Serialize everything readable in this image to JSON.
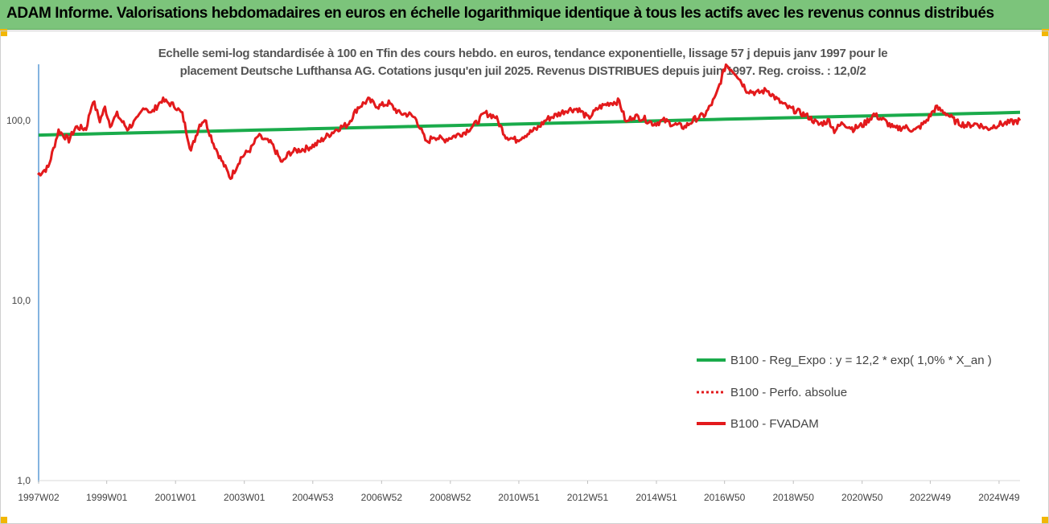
{
  "header": {
    "title": "ADAM Informe. Valorisations hebdomadaires en euros en échelle logarithmique identique à tous les actifs avec les revenus connus distribués"
  },
  "colors": {
    "header_bg": "#7cc47b",
    "corner": "#f2b705",
    "regression": "#1aab4b",
    "perfo": "#e31a1c",
    "fvadam": "#e31a1c",
    "axis": "#5b9bd5"
  },
  "chart_data": {
    "type": "line",
    "title_line1": "Echelle semi-log standardisée à 100 en Tfin des cours hebdo. en euros, tendance exponentielle, lissage 57 j depuis janv 1997 pour le",
    "title_line2": "placement Deutsche Lufthansa AG. Cotations jusqu'en juil 2025. Revenus DISTRIBUES depuis juin 1997. Reg. croiss. : 12,0/2",
    "y_scale": "log",
    "ylim": [
      1,
      200
    ],
    "y_ticks": [
      {
        "value": 1,
        "label": "1,0"
      },
      {
        "value": 10,
        "label": "10,0"
      },
      {
        "value": 100,
        "label": "100,0"
      }
    ],
    "x_range": [
      1997.02,
      2025.55
    ],
    "x_ticks": [
      {
        "value": 1997.02,
        "label": "1997W02"
      },
      {
        "value": 1999.0,
        "label": "1999W01"
      },
      {
        "value": 2001.0,
        "label": "2001W01"
      },
      {
        "value": 2003.0,
        "label": "2003W01"
      },
      {
        "value": 2004.99,
        "label": "2004W53"
      },
      {
        "value": 2006.99,
        "label": "2006W52"
      },
      {
        "value": 2008.99,
        "label": "2008W52"
      },
      {
        "value": 2010.98,
        "label": "2010W51"
      },
      {
        "value": 2012.98,
        "label": "2012W51"
      },
      {
        "value": 2014.98,
        "label": "2014W51"
      },
      {
        "value": 2016.96,
        "label": "2016W50"
      },
      {
        "value": 2018.96,
        "label": "2018W50"
      },
      {
        "value": 2020.96,
        "label": "2020W50"
      },
      {
        "value": 2022.94,
        "label": "2022W49"
      },
      {
        "value": 2024.94,
        "label": "2024W49"
      }
    ],
    "legend_position": "bottom-right",
    "grid": false,
    "series": [
      {
        "name": "B100 - Reg_Expo : y = 12,2 * exp( 1,0% *  X_an )",
        "style": "solid",
        "kind": "regression",
        "x": [
          1997.02,
          2025.55
        ],
        "values": [
          83,
          111
        ]
      },
      {
        "name": "B100 - Perfo. absolue",
        "style": "dotted",
        "kind": "hidden",
        "x": [],
        "values": []
      },
      {
        "name": "B100 - FVADAM",
        "style": "solid",
        "kind": "main",
        "x": [
          1997.0,
          1997.3,
          1997.6,
          1997.9,
          1998.1,
          1998.4,
          1998.6,
          1998.8,
          1998.95,
          1999.1,
          1999.3,
          1999.6,
          1999.9,
          2000.1,
          2000.3,
          2000.6,
          2000.8,
          2001.0,
          2001.2,
          2001.45,
          2001.7,
          2001.85,
          2002.1,
          2002.3,
          2002.6,
          2002.9,
          2003.2,
          2003.4,
          2003.6,
          2003.8,
          2004.1,
          2004.3,
          2004.5,
          2004.8,
          2005.1,
          2005.4,
          2005.7,
          2006.0,
          2006.3,
          2006.6,
          2006.9,
          2007.2,
          2007.5,
          2007.8,
          2008.0,
          2008.3,
          2008.5,
          2008.8,
          2009.1,
          2009.4,
          2009.7,
          2010.0,
          2010.3,
          2010.6,
          2010.9,
          2011.2,
          2011.5,
          2011.8,
          2012.1,
          2012.4,
          2012.7,
          2013.0,
          2013.3,
          2013.6,
          2013.9,
          2014.1,
          2014.3,
          2014.6,
          2014.9,
          2015.2,
          2015.5,
          2015.8,
          2016.1,
          2016.4,
          2016.7,
          2017.0,
          2017.3,
          2017.6,
          2017.9,
          2018.2,
          2018.5,
          2018.8,
          2019.1,
          2019.4,
          2019.7,
          2020.0,
          2020.15,
          2020.4,
          2020.7,
          2021.0,
          2021.3,
          2021.6,
          2021.9,
          2022.2,
          2022.5,
          2022.8,
          2023.1,
          2023.4,
          2023.7,
          2024.0,
          2024.3,
          2024.6,
          2024.9,
          2025.2,
          2025.55
        ],
        "values": [
          50,
          55,
          88,
          78,
          92,
          90,
          130,
          100,
          118,
          95,
          108,
          90,
          102,
          120,
          110,
          130,
          125,
          120,
          108,
          68,
          95,
          102,
          75,
          62,
          48,
          62,
          70,
          82,
          78,
          74,
          58,
          66,
          68,
          70,
          74,
          82,
          90,
          95,
          118,
          130,
          120,
          125,
          110,
          108,
          102,
          75,
          82,
          78,
          82,
          86,
          95,
          110,
          105,
          82,
          78,
          84,
          90,
          102,
          108,
          115,
          116,
          103,
          118,
          125,
          128,
          97,
          106,
          103,
          96,
          100,
          95,
          92,
          102,
          108,
          135,
          205,
          182,
          148,
          142,
          148,
          130,
          118,
          112,
          105,
          95,
          100,
          88,
          97,
          90,
          95,
          108,
          100,
          90,
          92,
          88,
          98,
          118,
          110,
          98,
          94,
          96,
          90,
          95,
          97,
          100
        ]
      }
    ]
  }
}
